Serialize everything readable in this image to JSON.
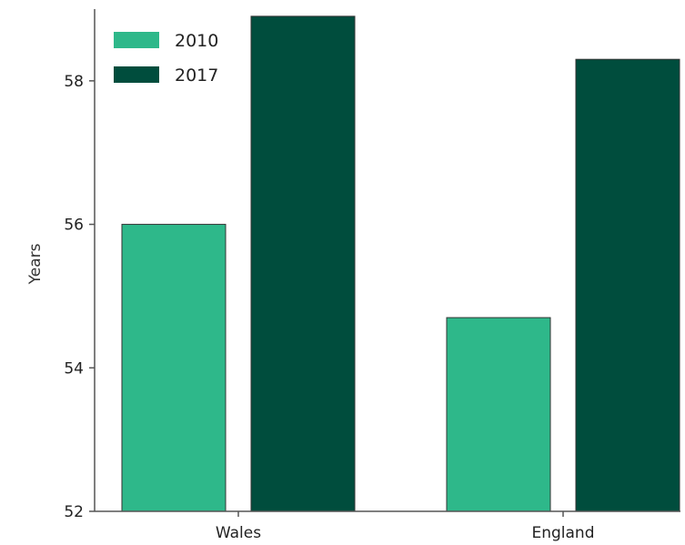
{
  "chart_data": {
    "type": "bar",
    "title": "",
    "xlabel": "",
    "ylabel": "Years",
    "categories": [
      "Wales",
      "England"
    ],
    "series": [
      {
        "name": "2010",
        "values": [
          56.0,
          54.7
        ],
        "color": "#2eb88a"
      },
      {
        "name": "2017",
        "values": [
          58.9,
          58.3
        ],
        "color": "#004d3d"
      }
    ],
    "ylim": [
      52,
      59
    ],
    "yticks": [
      52,
      54,
      56,
      58
    ],
    "grid": false,
    "legend_position": "top-left"
  }
}
